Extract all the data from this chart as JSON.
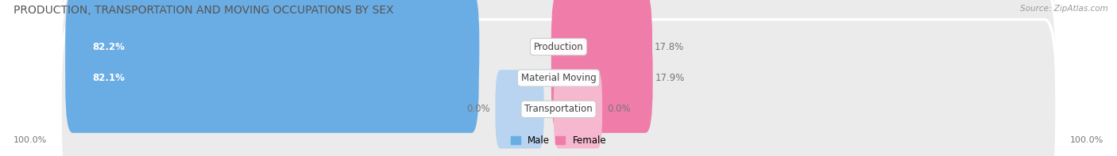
{
  "title": "PRODUCTION, TRANSPORTATION AND MOVING OCCUPATIONS BY SEX",
  "source": "Source: ZipAtlas.com",
  "categories": [
    "Production",
    "Material Moving",
    "Transportation"
  ],
  "male_values": [
    82.2,
    82.1,
    0.0
  ],
  "female_values": [
    17.8,
    17.9,
    0.0
  ],
  "male_color": "#6aade4",
  "female_color": "#f07caa",
  "male_color_light": "#b8d4f0",
  "female_color_light": "#f5b8ce",
  "row_bg_color": "#ebebeb",
  "row_border_color": "#d8d8d8",
  "title_color": "#555555",
  "source_color": "#999999",
  "tick_color": "#777777",
  "title_fontsize": 10,
  "label_fontsize": 8.5,
  "cat_fontsize": 8.5,
  "tick_fontsize": 8,
  "legend_fontsize": 8.5
}
